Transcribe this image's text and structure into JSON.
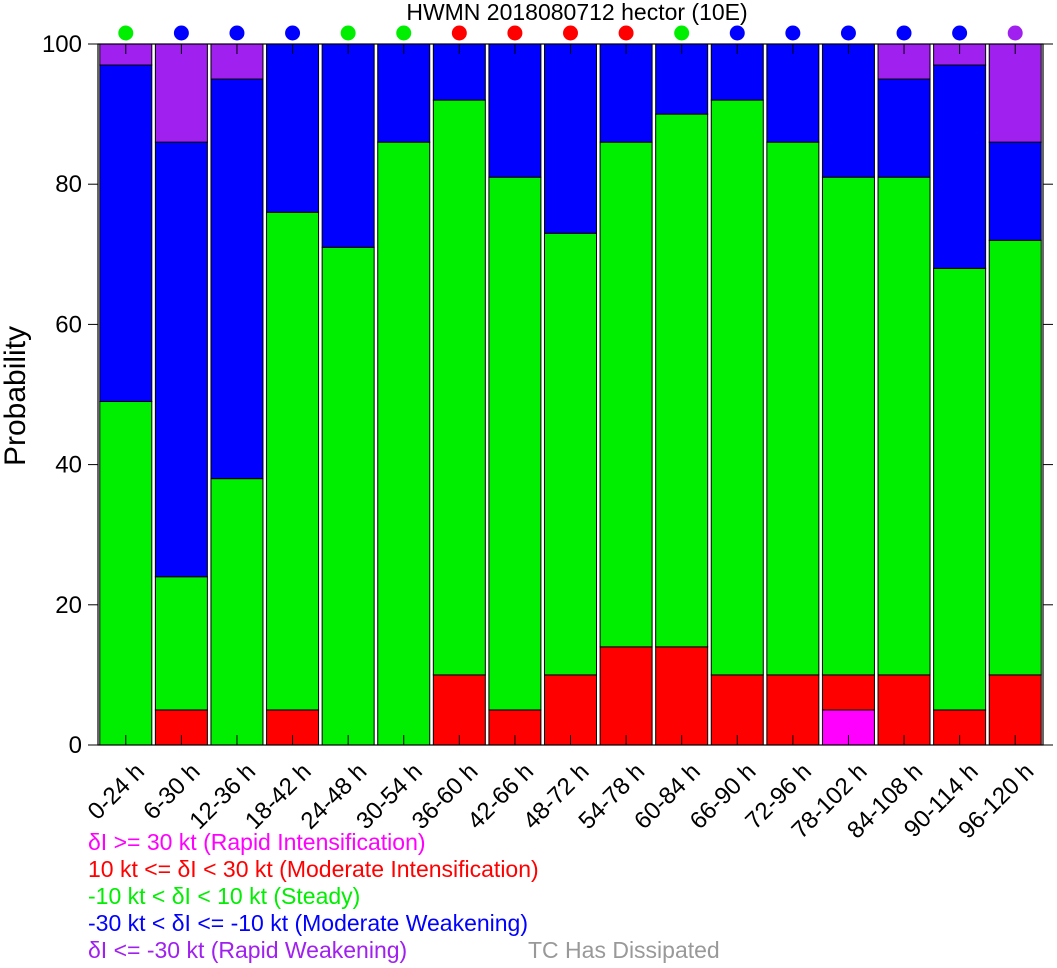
{
  "chart_data": {
    "type": "bar",
    "stacked": true,
    "title": "HWMN 2018080712 hector (10E)",
    "ylabel": "Probability",
    "xlabel": "",
    "ylim": [
      0,
      100
    ],
    "yticks": [
      0,
      20,
      40,
      60,
      80,
      100
    ],
    "grid": false,
    "categories": [
      "0-24 h",
      "6-30 h",
      "12-36 h",
      "18-42 h",
      "24-48 h",
      "30-54 h",
      "36-60 h",
      "42-66 h",
      "48-72 h",
      "54-78 h",
      "60-84 h",
      "66-90 h",
      "72-96 h",
      "78-102 h",
      "84-108 h",
      "90-114 h",
      "96-120 h"
    ],
    "series": [
      {
        "key": "ri",
        "color": "#ff00ff",
        "values": [
          0,
          0,
          0,
          0,
          0,
          0,
          0,
          0,
          0,
          0,
          0,
          0,
          0,
          5,
          0,
          0,
          0
        ]
      },
      {
        "key": "mi",
        "color": "#ff0000",
        "values": [
          0,
          5,
          0,
          5,
          0,
          0,
          10,
          5,
          10,
          14,
          14,
          10,
          10,
          5,
          10,
          5,
          10
        ]
      },
      {
        "key": "st",
        "color": "#00ee00",
        "values": [
          49,
          19,
          38,
          71,
          71,
          86,
          82,
          76,
          63,
          72,
          76,
          82,
          76,
          71,
          71,
          63,
          62
        ]
      },
      {
        "key": "mw",
        "color": "#0000ff",
        "values": [
          48,
          62,
          57,
          24,
          29,
          14,
          8,
          19,
          27,
          14,
          10,
          8,
          14,
          19,
          14,
          29,
          14
        ]
      },
      {
        "key": "rw",
        "color": "#a020f0",
        "values": [
          3,
          14,
          5,
          0,
          0,
          0,
          0,
          0,
          0,
          0,
          0,
          0,
          0,
          0,
          5,
          3,
          14
        ]
      }
    ],
    "top_markers": [
      "#00ee00",
      "#0000ff",
      "#0000ff",
      "#0000ff",
      "#00ee00",
      "#00ee00",
      "#ff0000",
      "#ff0000",
      "#ff0000",
      "#ff0000",
      "#00ee00",
      "#0000ff",
      "#0000ff",
      "#0000ff",
      "#0000ff",
      "#0000ff",
      "#a020f0"
    ]
  },
  "legend": [
    {
      "text": "δI >= 30 kt (Rapid Intensification)",
      "color": "#ff00ff"
    },
    {
      "text": "10 kt <= δI < 30 kt (Moderate Intensification)",
      "color": "#ff0000"
    },
    {
      "text": "-10 kt < δI < 10 kt (Steady)",
      "color": "#00ee00"
    },
    {
      "text": "-30 kt < δI <= -10 kt (Moderate Weakening)",
      "color": "#0000ff"
    },
    {
      "text": "δI <= -30 kt (Rapid Weakening)",
      "color": "#a020f0"
    }
  ],
  "dissipated_label": "TC Has Dissipated",
  "dissipated_color": "#999999"
}
